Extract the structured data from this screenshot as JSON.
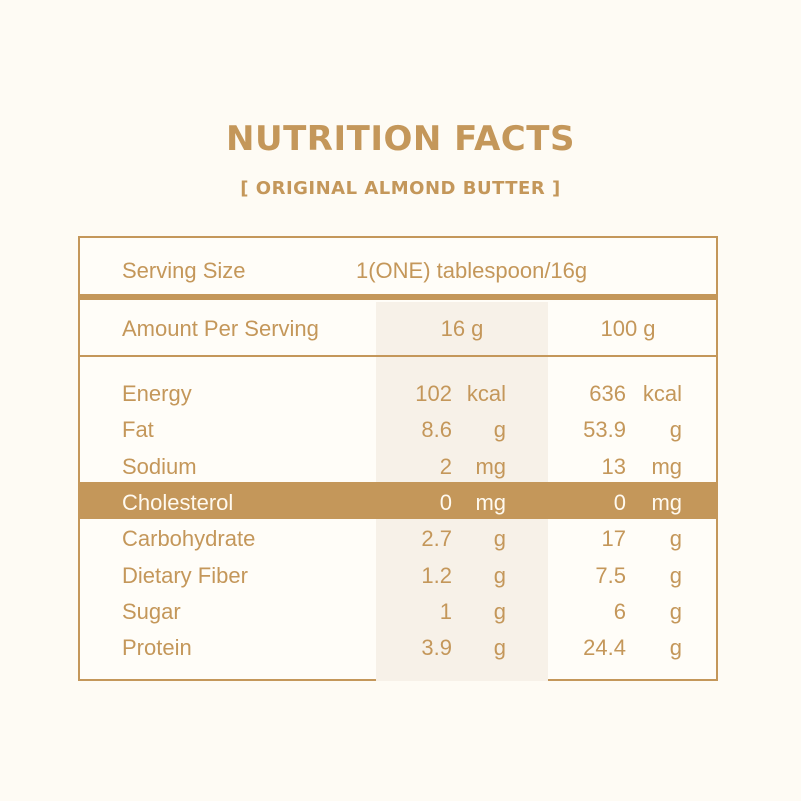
{
  "title": "NUTRITION FACTS",
  "subtitle": "[ ORIGINAL ALMOND BUTTER ]",
  "serving": {
    "label": "Serving Size",
    "value": "1(ONE) tablespoon/16g"
  },
  "amount": {
    "label": "Amount Per Serving",
    "col1": "16 g",
    "col2": "100 g"
  },
  "colors": {
    "accent": "#c4975a",
    "background": "#fefbf4",
    "column_shade": "#f7f1e8",
    "highlight_text": "#fffaf0"
  },
  "highlighted_row": "Cholesterol",
  "rows": [
    {
      "name": "Energy",
      "v16": "102",
      "u16": "kcal",
      "v100": "636",
      "u100": "kcal"
    },
    {
      "name": "Fat",
      "v16": "8.6",
      "u16": "g",
      "v100": "53.9",
      "u100": "g"
    },
    {
      "name": "Sodium",
      "v16": "2",
      "u16": "mg",
      "v100": "13",
      "u100": "mg"
    },
    {
      "name": "Cholesterol",
      "v16": "0",
      "u16": "mg",
      "v100": "0",
      "u100": "mg"
    },
    {
      "name": "Carbohydrate",
      "v16": "2.7",
      "u16": "g",
      "v100": "17",
      "u100": "g"
    },
    {
      "name": "Dietary Fiber",
      "v16": "1.2",
      "u16": "g",
      "v100": "7.5",
      "u100": "g"
    },
    {
      "name": "Sugar",
      "v16": "1",
      "u16": "g",
      "v100": "6",
      "u100": "g"
    },
    {
      "name": "Protein",
      "v16": "3.9",
      "u16": "g",
      "v100": "24.4",
      "u100": "g"
    }
  ]
}
